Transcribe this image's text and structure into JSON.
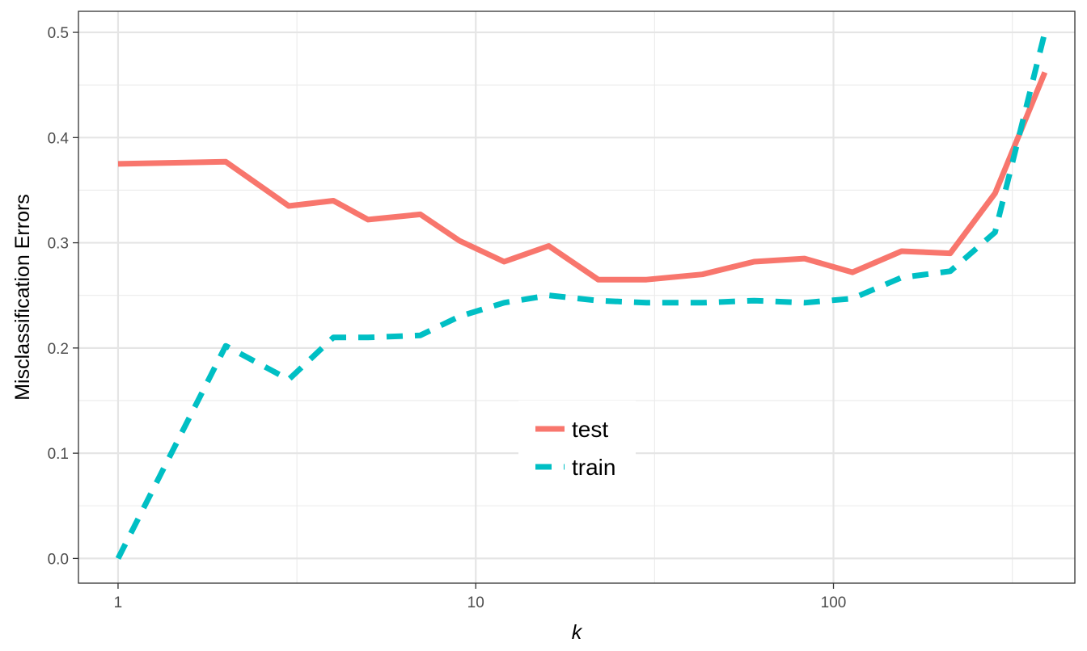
{
  "chart_data": {
    "type": "line",
    "title": "",
    "xlabel": "k",
    "ylabel": "Misclassification Errors",
    "x_scale": "log10",
    "xlim": [
      0.775,
      473
    ],
    "ylim": [
      -0.0235,
      0.52
    ],
    "x_ticks": [
      1,
      10,
      100
    ],
    "x_tick_labels": [
      "1",
      "10",
      "100"
    ],
    "y_ticks": [
      0,
      0.1,
      0.2,
      0.3,
      0.4,
      0.5
    ],
    "y_tick_labels": [
      "0.0",
      "0.1",
      "0.2",
      "0.3",
      "0.4",
      "0.5"
    ],
    "grid": true,
    "legend_position": "center-bottom (inside)",
    "x": [
      1,
      2,
      3,
      4,
      5,
      7,
      9,
      12,
      16,
      22,
      30,
      43,
      60,
      83,
      113,
      155,
      212,
      283,
      390
    ],
    "series": [
      {
        "name": "test",
        "color": "#F8766D",
        "line_style": "solid",
        "values": [
          0.375,
          0.377,
          0.335,
          0.34,
          0.322,
          0.327,
          0.302,
          0.282,
          0.297,
          0.265,
          0.265,
          0.27,
          0.282,
          0.285,
          0.272,
          0.292,
          0.29,
          0.347,
          0.462
        ]
      },
      {
        "name": "train",
        "color": "#00BFC4",
        "line_style": "dashed",
        "values": [
          0.0,
          0.202,
          0.17,
          0.21,
          0.21,
          0.212,
          0.23,
          0.243,
          0.25,
          0.245,
          0.243,
          0.243,
          0.245,
          0.243,
          0.247,
          0.267,
          0.273,
          0.31,
          0.5
        ]
      }
    ]
  }
}
